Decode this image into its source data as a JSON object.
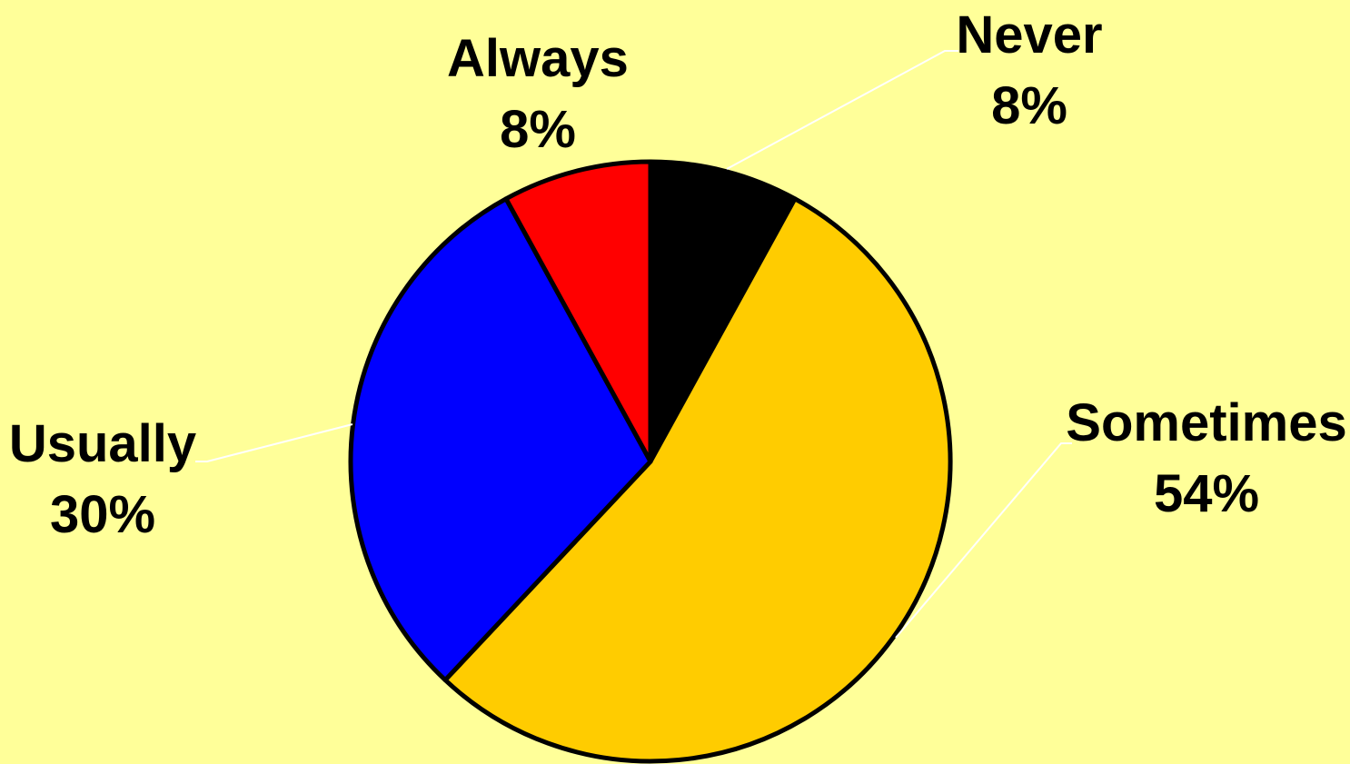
{
  "chart_data": {
    "type": "pie",
    "start_angle_deg": 0,
    "direction": "clockwise",
    "slices": [
      {
        "name": "Never",
        "value": 8,
        "percent_label": "8%",
        "color": "#000000"
      },
      {
        "name": "Sometimes",
        "value": 54,
        "percent_label": "54%",
        "color": "#FFCC00"
      },
      {
        "name": "Usually",
        "value": 30,
        "percent_label": "30%",
        "color": "#0000FF"
      },
      {
        "name": "Always",
        "value": 8,
        "percent_label": "8%",
        "color": "#FF0000"
      }
    ],
    "background": "#FFFF99",
    "leader_line_color": "#FFFFFF",
    "slice_border_color": "#000000"
  }
}
